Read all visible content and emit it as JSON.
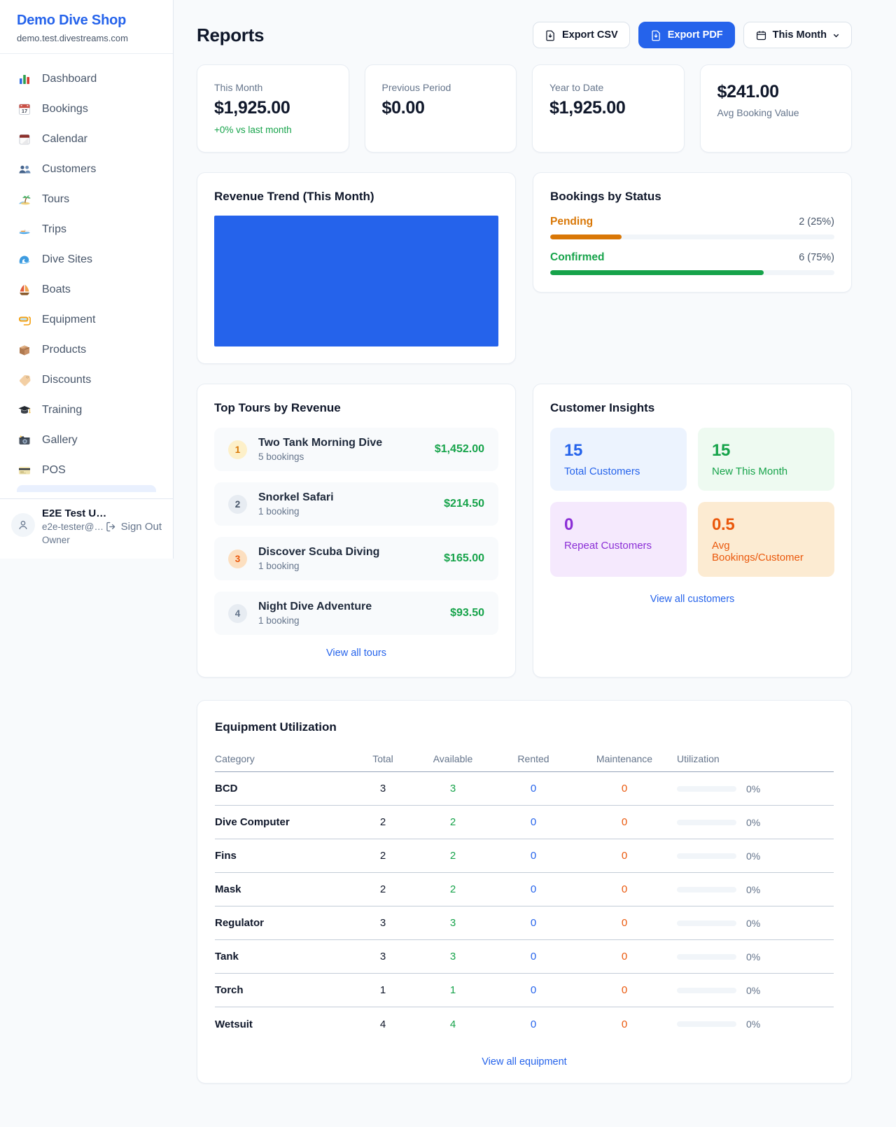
{
  "colors": {
    "accent": "#2563eb",
    "positive_green": "#16a34a",
    "pending_orange": "#d97706",
    "maintenance_orange": "#ea580c",
    "purple": "#8b2fd6"
  },
  "sidebar": {
    "brand": "Demo Dive Shop",
    "domain": "demo.test.divestreams.com",
    "items": [
      {
        "label": "Dashboard",
        "icon": "bar-chart-icon"
      },
      {
        "label": "Bookings",
        "icon": "calendar-date-icon",
        "icon_text": "17"
      },
      {
        "label": "Calendar",
        "icon": "tearoff-calendar-icon"
      },
      {
        "label": "Customers",
        "icon": "people-icon"
      },
      {
        "label": "Tours",
        "icon": "island-icon"
      },
      {
        "label": "Trips",
        "icon": "speedboat-icon"
      },
      {
        "label": "Dive Sites",
        "icon": "wave-icon"
      },
      {
        "label": "Boats",
        "icon": "sailboat-icon"
      },
      {
        "label": "Equipment",
        "icon": "dive-mask-icon"
      },
      {
        "label": "Products",
        "icon": "package-icon"
      },
      {
        "label": "Discounts",
        "icon": "tag-icon"
      },
      {
        "label": "Training",
        "icon": "graduation-cap-icon"
      },
      {
        "label": "Gallery",
        "icon": "camera-icon"
      },
      {
        "label": "POS",
        "icon": "credit-card-icon"
      }
    ],
    "user": {
      "name": "E2E Test U…",
      "email": "e2e-tester@…",
      "role": "Owner",
      "sign_out": "Sign Out"
    }
  },
  "header": {
    "title": "Reports",
    "export_csv": "Export CSV",
    "export_pdf": "Export PDF",
    "period": "This Month"
  },
  "stats": [
    {
      "label": "This Month",
      "value": "$1,925.00",
      "delta": "+0% vs last month"
    },
    {
      "label": "Previous Period",
      "value": "$0.00"
    },
    {
      "label": "Year to Date",
      "value": "$1,925.00"
    },
    {
      "label": "Avg Booking Value",
      "value": "$241.00"
    }
  ],
  "revenue_trend": {
    "title": "Revenue Trend (This Month)",
    "chart_data": {
      "type": "area",
      "title": "Revenue Trend (This Month)",
      "fill_color": "#2563eb",
      "axes_visible": false,
      "note": "plot area rendered as a solid filled block; no axis ticks, labels or data-point values visible"
    }
  },
  "bookings_status": {
    "title": "Bookings by Status",
    "rows": [
      {
        "label": "Pending",
        "value": "2 (25%)",
        "pct": 25
      },
      {
        "label": "Confirmed",
        "value": "6 (75%)",
        "pct": 75
      }
    ]
  },
  "top_tours": {
    "title": "Top Tours by Revenue",
    "rows": [
      {
        "rank": "1",
        "name": "Two Tank Morning Dive",
        "bookings": "5 bookings",
        "amount": "$1,452.00"
      },
      {
        "rank": "2",
        "name": "Snorkel Safari",
        "bookings": "1 booking",
        "amount": "$214.50"
      },
      {
        "rank": "3",
        "name": "Discover Scuba Diving",
        "bookings": "1 booking",
        "amount": "$165.00"
      },
      {
        "rank": "4",
        "name": "Night Dive Adventure",
        "bookings": "1 booking",
        "amount": "$93.50"
      }
    ],
    "view_all": "View all tours"
  },
  "customer_insights": {
    "title": "Customer Insights",
    "tiles": [
      {
        "value": "15",
        "label": "Total Customers"
      },
      {
        "value": "15",
        "label": "New This Month"
      },
      {
        "value": "0",
        "label": "Repeat Customers"
      },
      {
        "value": "0.5",
        "label": "Avg Bookings/Customer"
      }
    ],
    "view_all": "View all customers"
  },
  "equipment": {
    "title": "Equipment Utilization",
    "headers": [
      "Category",
      "Total",
      "Available",
      "Rented",
      "Maintenance",
      "Utilization"
    ],
    "rows": [
      {
        "category": "BCD",
        "total": "3",
        "available": "3",
        "rented": "0",
        "maintenance": "0",
        "utilization_pct": 0,
        "utilization_label": "0%"
      },
      {
        "category": "Dive Computer",
        "total": "2",
        "available": "2",
        "rented": "0",
        "maintenance": "0",
        "utilization_pct": 0,
        "utilization_label": "0%"
      },
      {
        "category": "Fins",
        "total": "2",
        "available": "2",
        "rented": "0",
        "maintenance": "0",
        "utilization_pct": 0,
        "utilization_label": "0%"
      },
      {
        "category": "Mask",
        "total": "2",
        "available": "2",
        "rented": "0",
        "maintenance": "0",
        "utilization_pct": 0,
        "utilization_label": "0%"
      },
      {
        "category": "Regulator",
        "total": "3",
        "available": "3",
        "rented": "0",
        "maintenance": "0",
        "utilization_pct": 0,
        "utilization_label": "0%"
      },
      {
        "category": "Tank",
        "total": "3",
        "available": "3",
        "rented": "0",
        "maintenance": "0",
        "utilization_pct": 0,
        "utilization_label": "0%"
      },
      {
        "category": "Torch",
        "total": "1",
        "available": "1",
        "rented": "0",
        "maintenance": "0",
        "utilization_pct": 0,
        "utilization_label": "0%"
      },
      {
        "category": "Wetsuit",
        "total": "4",
        "available": "4",
        "rented": "0",
        "maintenance": "0",
        "utilization_pct": 0,
        "utilization_label": "0%"
      }
    ],
    "view_all": "View all equipment"
  }
}
